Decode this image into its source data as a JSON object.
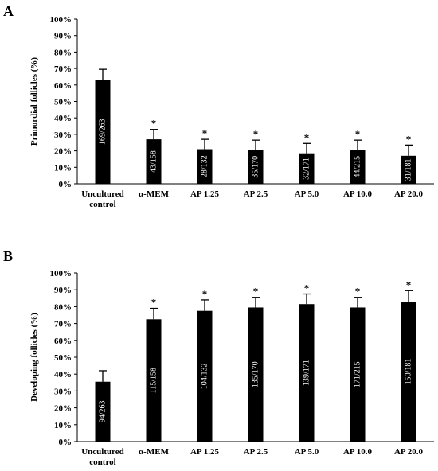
{
  "chart_data": [
    {
      "type": "bar",
      "panel_label": "A",
      "ylabel": "Primordial follicles (%)",
      "categories": [
        [
          "Uncultured",
          "control"
        ],
        [
          "α-MEM"
        ],
        [
          "AP 1.25"
        ],
        [
          "AP 2.5"
        ],
        [
          "AP 5.0"
        ],
        [
          "AP 10.0"
        ],
        [
          "AP 20.0"
        ]
      ],
      "values": [
        63,
        27,
        21,
        20.5,
        18.5,
        20.5,
        17
      ],
      "errors": [
        6.5,
        6,
        6,
        6,
        6,
        6,
        6.5
      ],
      "bar_labels": [
        "169/263",
        "43/158",
        "28/132",
        "35/170",
        "32/171",
        "44/215",
        "31/181"
      ],
      "significance": [
        "",
        "*",
        "*",
        "*",
        "*",
        "*",
        "*"
      ],
      "ylim": [
        0,
        100
      ],
      "yticks": [
        "0%",
        "10%",
        "20%",
        "30%",
        "40%",
        "50%",
        "60%",
        "70%",
        "80%",
        "90%",
        "100%"
      ],
      "bar_color": "#000000",
      "grid": false
    },
    {
      "type": "bar",
      "panel_label": "B",
      "ylabel": "Developing follicles (%)",
      "categories": [
        [
          "Uncultured",
          "control"
        ],
        [
          "α-MEM"
        ],
        [
          "AP 1.25"
        ],
        [
          "AP 2.5"
        ],
        [
          "AP 5.0"
        ],
        [
          "AP 10.0"
        ],
        [
          "AP 20.0"
        ]
      ],
      "values": [
        35.5,
        72.5,
        77.5,
        79.5,
        81.5,
        79.5,
        83
      ],
      "errors": [
        6.5,
        6.5,
        6.5,
        6,
        6,
        6,
        6.5
      ],
      "bar_labels": [
        "94/263",
        "115/158",
        "104/132",
        "135/170",
        "139/171",
        "171/215",
        "150/181"
      ],
      "significance": [
        "",
        "*",
        "*",
        "*",
        "*",
        "*",
        "*"
      ],
      "ylim": [
        0,
        100
      ],
      "yticks": [
        "0%",
        "10%",
        "20%",
        "30%",
        "40%",
        "50%",
        "60%",
        "70%",
        "80%",
        "90%",
        "100%"
      ],
      "bar_color": "#000000",
      "grid": false
    }
  ]
}
